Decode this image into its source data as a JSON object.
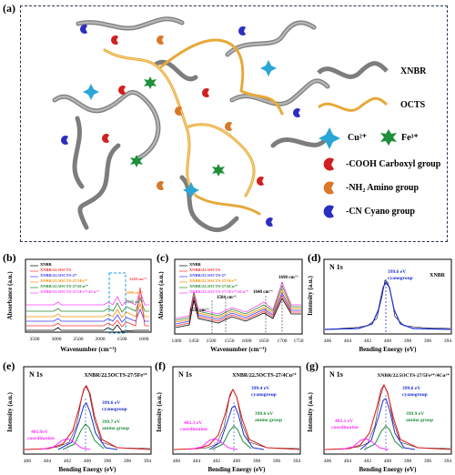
{
  "panel_labels": {
    "a": "(a)",
    "b": "(b)",
    "c": "(c)",
    "d": "(d)",
    "e": "(e)",
    "f": "(f)",
    "g": "(g)"
  },
  "schematic": {
    "legend": {
      "xnbr": "XNBR",
      "octs": "OCTS",
      "cu": "Cu²⁺",
      "fe": "Fe³⁺",
      "carboxyl": "-COOH Carboxyl group",
      "amino": "-NH₂ Amino group",
      "cyano": "-CN Cyano group"
    },
    "colors": {
      "xnbr": "#8a8a8a",
      "octs": "#e6a93a",
      "cu": "#2aa6d6",
      "fe": "#1e8f3a",
      "carboxyl": "#d21f1f",
      "amino": "#d9782a",
      "cyano": "#2b2fbf"
    }
  },
  "chart_data": [
    {
      "id": "b",
      "type": "line",
      "xlabel": "Wavenumber (cm⁻¹)",
      "ylabel": "Absorbance (a.u.)",
      "xticks": [
        "3500",
        "3000",
        "2500",
        "2000",
        "1500",
        "1000"
      ],
      "legend": [
        "XNBR",
        "XNBR/22.5OCTS",
        "XNBR/22.5OCTS-27",
        "XNBR/22.5OCTS-27/5Fe³⁺",
        "XNBR/22.5OCTS-27/4Cu²⁺",
        "XNBR/22.5OCTS-27/5Fe³⁺/4Cu²⁺"
      ],
      "colors": [
        "#000000",
        "#ff3030",
        "#3a3aff",
        "#ff8c00",
        "#2a8a2a",
        "#ff40ff"
      ],
      "annotations": [
        "1129 cm⁻¹",
        "1109 cm⁻¹",
        "1176 cm⁻¹"
      ]
    },
    {
      "id": "c",
      "type": "line",
      "xlabel": "Wavenumber (cm⁻¹)",
      "ylabel": "Absorbance (a.u.)",
      "xticks": [
        "1400",
        "1450",
        "1500",
        "1550",
        "1600",
        "1650",
        "1700",
        "1750"
      ],
      "legend": [
        "XNBR",
        "XNBR/22.5OCTS",
        "XNBR/22.5OCTS-27",
        "XNBR/22.5OCTS-27/5Fe³⁺",
        "XNBR/22.5OCTS-27/4Cu²⁺",
        "XNBR/22.5OCTS-27/5Fe³⁺/4Cu²⁺"
      ],
      "colors": [
        "#000000",
        "#ff3030",
        "#3a3aff",
        "#ff8c00",
        "#2a8a2a",
        "#ff40ff"
      ],
      "annotations": [
        "1551 cm⁻¹",
        "1584 cm⁻¹",
        "1640 cm⁻¹",
        "1698 cm⁻¹"
      ]
    },
    {
      "id": "d",
      "type": "line",
      "title": "N 1s",
      "sample": "XNBR",
      "xlabel": "Bending Energy (eV)",
      "ylabel": "Intensity (a.u.)",
      "xticks": [
        "406",
        "404",
        "402",
        "400",
        "398",
        "396",
        "394"
      ],
      "peaks": [
        {
          "label": "399.6 eV",
          "name": "cyanogroup"
        }
      ]
    },
    {
      "id": "e",
      "type": "line",
      "title": "N 1s",
      "sample": "XNBR/22.5OCTS-27/5Fe³⁺",
      "xlabel": "Bending Energy (eV)",
      "ylabel": "Intensity (a.u.)",
      "xticks": [
        "406",
        "404",
        "402",
        "400",
        "398",
        "396",
        "394"
      ],
      "peaks": [
        {
          "label": "399.6 eV",
          "name": "cyanogroup"
        },
        {
          "label": "399.7 eV",
          "name": "amino group"
        },
        {
          "label": "401.9eV",
          "name": "coordination"
        }
      ]
    },
    {
      "id": "f",
      "type": "line",
      "title": "N 1s",
      "sample": "XNBR/22.5OCTS-27/4Cu²⁺",
      "xlabel": "Bending Energy (eV)",
      "ylabel": "Intensity (a.u.)",
      "xticks": [
        "406",
        "404",
        "402",
        "400",
        "398",
        "396",
        "394"
      ],
      "peaks": [
        {
          "label": "399.4 eV",
          "name": "cyanogroup"
        },
        {
          "label": "399.6 eV",
          "name": "amino group"
        },
        {
          "label": "402.3 eV",
          "name": "coordination"
        }
      ]
    },
    {
      "id": "g",
      "type": "line",
      "title": "N 1s",
      "sample": "XNBR/22.5OCTS-27/5Fe³⁺/4Cu²⁺",
      "xlabel": "Bending Energy (eV)",
      "ylabel": "Intensity (a.u.)",
      "xticks": [
        "406",
        "404",
        "402",
        "400",
        "398",
        "396",
        "394"
      ],
      "peaks": [
        {
          "label": "399.6 eV",
          "name": "cyanogroup"
        },
        {
          "label": "399.9 eV",
          "name": "amino group"
        },
        {
          "label": "402.1 eV",
          "name": "coordination"
        }
      ]
    }
  ]
}
